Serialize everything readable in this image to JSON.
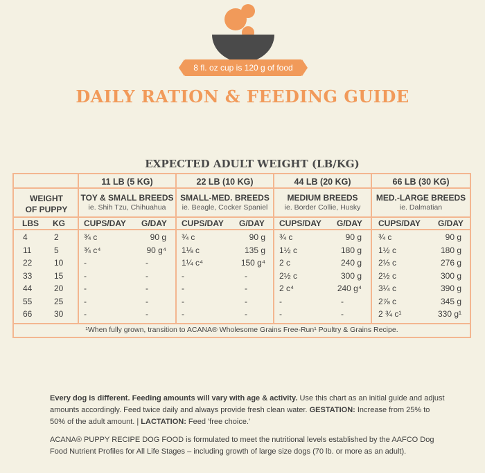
{
  "cup_note": "8 fl. oz cup is 120 g of food",
  "title": "DAILY RATION & FEEDING GUIDE",
  "subtitle": "EXPECTED ADULT WEIGHT (LB/KG)",
  "weight_of_puppy": [
    "WEIGHT",
    "OF PUPPY"
  ],
  "col_lbs": "LBS",
  "col_kg": "KG",
  "col_cups": "CUPS/DAY",
  "col_g": "G/DAY",
  "breeds": [
    {
      "weight": "11 LB (5 KG)",
      "name": "TOY & SMALL BREEDS",
      "example": "ie. Shih Tzu, Chihuahua"
    },
    {
      "weight": "22 LB (10 KG)",
      "name": "SMALL-MED. BREEDS",
      "example": "ie. Beagle, Cocker Spaniel"
    },
    {
      "weight": "44 LB (20 KG)",
      "name": "MEDIUM BREEDS",
      "example": "ie. Border Collie, Husky"
    },
    {
      "weight": "66 LB (30 KG)",
      "name": "MED.-LARGE BREEDS",
      "example": "ie. Dalmatian"
    }
  ],
  "rows": [
    {
      "lbs": "4",
      "kg": "2",
      "vals": [
        [
          "¾ c",
          "90 g"
        ],
        [
          "¾ c",
          "90 g"
        ],
        [
          "¾ c",
          "90 g"
        ],
        [
          "¾ c",
          "90 g"
        ]
      ]
    },
    {
      "lbs": "11",
      "kg": "5",
      "vals": [
        [
          "¾ c⁴",
          "90 g⁴"
        ],
        [
          "1⅛ c",
          "135 g"
        ],
        [
          "1½ c",
          "180 g"
        ],
        [
          "1½ c",
          "180 g"
        ]
      ]
    },
    {
      "lbs": "22",
      "kg": "10",
      "vals": [
        [
          "-",
          "-"
        ],
        [
          "1¼ c⁴",
          "150 g⁴"
        ],
        [
          "2 c",
          "240 g"
        ],
        [
          "2⅓ c",
          "276 g"
        ]
      ]
    },
    {
      "lbs": "33",
      "kg": "15",
      "vals": [
        [
          "-",
          "-"
        ],
        [
          "-",
          "-"
        ],
        [
          "2½ c",
          "300 g"
        ],
        [
          "2½ c",
          "300 g"
        ]
      ]
    },
    {
      "lbs": "44",
      "kg": "20",
      "vals": [
        [
          "-",
          "-"
        ],
        [
          "-",
          "-"
        ],
        [
          "2 c⁴",
          "240 g⁴"
        ],
        [
          "3¼ c",
          "390 g"
        ]
      ]
    },
    {
      "lbs": "55",
      "kg": "25",
      "vals": [
        [
          "-",
          "-"
        ],
        [
          "-",
          "-"
        ],
        [
          "-",
          "-"
        ],
        [
          "2⅞ c",
          "345 g"
        ]
      ]
    },
    {
      "lbs": "66",
      "kg": "30",
      "vals": [
        [
          "-",
          "-"
        ],
        [
          "-",
          "-"
        ],
        [
          "-",
          "-"
        ],
        [
          "2 ¾ c¹",
          "330 g¹"
        ]
      ]
    }
  ],
  "footnote": "¹When fully grown, transition to ACANA® Wholesome Grains Free-Run¹ Poultry & Grains Recipe.",
  "para1_bold": "Every dog is different. Feeding amounts will vary with age & activity.",
  "para1_rest": " Use this chart as an initial guide and adjust amounts accordingly. Feed twice daily and always provide fresh clean water. ",
  "gestation_label": "GESTATION:",
  "gestation_text": " Increase from 25% to 50% of the adult amount. | ",
  "lactation_label": "LACTATION:",
  "lactation_text": " Feed 'free choice.'",
  "para2": "ACANA® PUPPY RECIPE DOG FOOD is formulated to meet the nutritional levels established by the AAFCO Dog Food Nutrient Profiles for All Life Stages – including growth of large size dogs (70 lb. or more as an adult).",
  "colors": {
    "accent": "#f19a5a",
    "border": "#f3b690",
    "bowl": "#4a4a4a",
    "background": "#f4f1e3"
  }
}
